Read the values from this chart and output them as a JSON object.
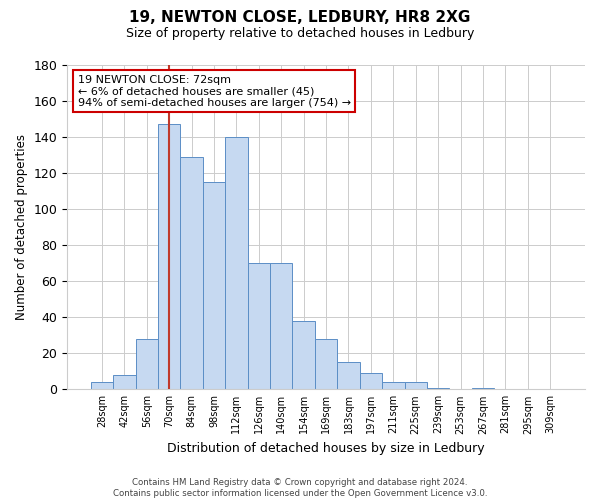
{
  "title_line1": "19, NEWTON CLOSE, LEDBURY, HR8 2XG",
  "title_line2": "Size of property relative to detached houses in Ledbury",
  "xlabel": "Distribution of detached houses by size in Ledbury",
  "ylabel": "Number of detached properties",
  "footer_line1": "Contains HM Land Registry data © Crown copyright and database right 2024.",
  "footer_line2": "Contains public sector information licensed under the Open Government Licence v3.0.",
  "bar_labels": [
    "28sqm",
    "42sqm",
    "56sqm",
    "70sqm",
    "84sqm",
    "98sqm",
    "112sqm",
    "126sqm",
    "140sqm",
    "154sqm",
    "169sqm",
    "183sqm",
    "197sqm",
    "211sqm",
    "225sqm",
    "239sqm",
    "253sqm",
    "267sqm",
    "281sqm",
    "295sqm",
    "309sqm"
  ],
  "bar_values": [
    4,
    8,
    28,
    147,
    129,
    115,
    140,
    70,
    70,
    38,
    28,
    15,
    9,
    4,
    4,
    1,
    0,
    1,
    0,
    0,
    0
  ],
  "bar_color": "#c6d9f1",
  "bar_edge_color": "#5b8ec6",
  "ylim": [
    0,
    180
  ],
  "yticks": [
    0,
    20,
    40,
    60,
    80,
    100,
    120,
    140,
    160,
    180
  ],
  "annotation_text_line1": "19 NEWTON CLOSE: 72sqm",
  "annotation_text_line2": "← 6% of detached houses are smaller (45)",
  "annotation_text_line3": "94% of semi-detached houses are larger (754) →",
  "marker_bar_index": 3,
  "marker_color": "#c0392b",
  "background_color": "#ffffff",
  "grid_color": "#cccccc"
}
